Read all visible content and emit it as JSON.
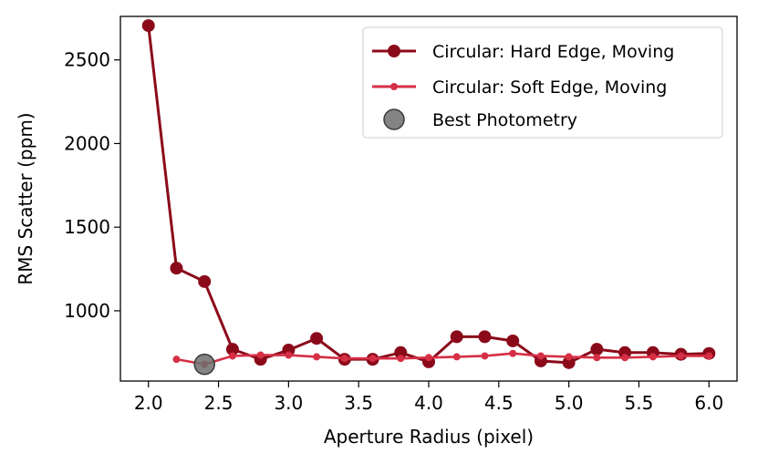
{
  "chart_data": {
    "type": "line",
    "xlabel": "Aperture Radius (pixel)",
    "ylabel": "RMS Scatter (ppm)",
    "xlim": [
      1.8,
      6.2
    ],
    "ylim": [
      580,
      2760
    ],
    "xticks": [
      2.0,
      2.5,
      3.0,
      3.5,
      4.0,
      4.5,
      5.0,
      5.5,
      6.0
    ],
    "xtick_labels": [
      "2.0",
      "2.5",
      "3.0",
      "3.5",
      "4.0",
      "4.5",
      "5.0",
      "5.5",
      "6.0"
    ],
    "yticks": [
      1000,
      1500,
      2000,
      2500
    ],
    "ytick_labels": [
      "1000",
      "1500",
      "2000",
      "2500"
    ],
    "legend_position": "top-right",
    "series": [
      {
        "name": "Circular: Hard Edge, Moving",
        "color": "#8b0a1a",
        "marker": "large-circle",
        "x": [
          2.0,
          2.2,
          2.4,
          2.6,
          2.8,
          3.0,
          3.2,
          3.4,
          3.6,
          3.8,
          4.0,
          4.2,
          4.4,
          4.6,
          4.8,
          5.0,
          5.2,
          5.4,
          5.6,
          5.8,
          6.0
        ],
        "y": [
          2705,
          1255,
          1175,
          770,
          710,
          765,
          835,
          710,
          710,
          750,
          695,
          845,
          845,
          820,
          700,
          690,
          770,
          750,
          750,
          740,
          745
        ]
      },
      {
        "name": "Circular: Soft Edge, Moving",
        "color": "#d62f45",
        "marker": "small-circle",
        "x": [
          2.2,
          2.4,
          2.6,
          2.8,
          3.0,
          3.2,
          3.4,
          3.6,
          3.8,
          4.0,
          4.2,
          4.4,
          4.6,
          4.8,
          5.0,
          5.2,
          5.4,
          5.6,
          5.8,
          6.0
        ],
        "y": [
          710,
          680,
          730,
          735,
          735,
          725,
          715,
          715,
          715,
          720,
          725,
          730,
          745,
          730,
          725,
          720,
          720,
          725,
          730,
          730
        ]
      }
    ],
    "highlight": {
      "name": "Best Photometry",
      "color": "#6e6e6e",
      "x": 2.4,
      "y": 680
    }
  }
}
